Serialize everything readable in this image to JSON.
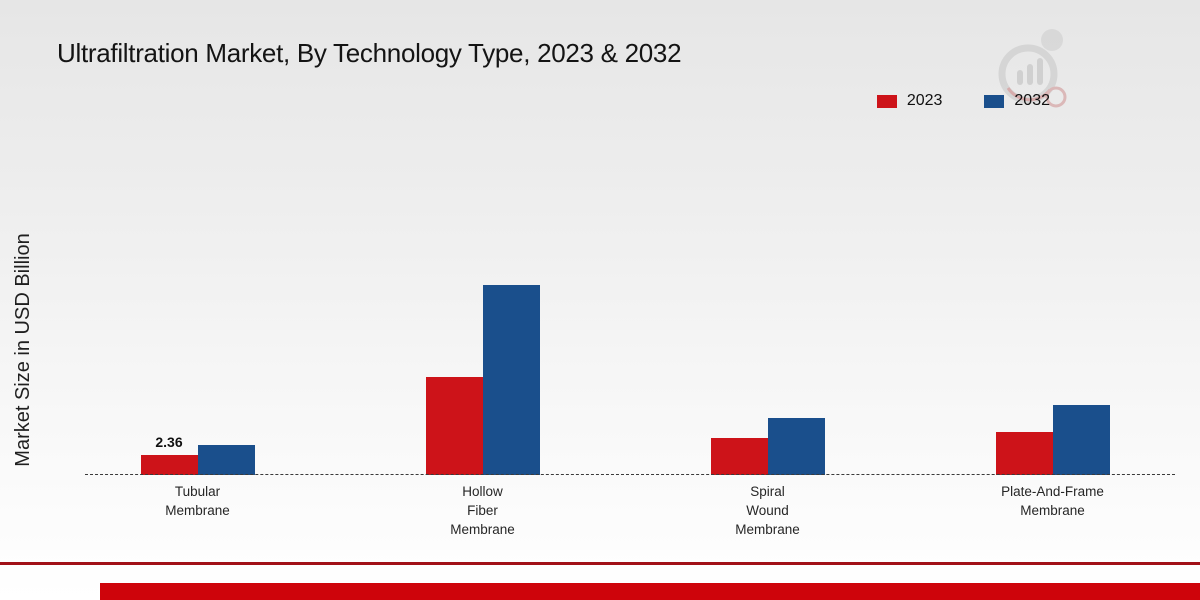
{
  "chart_data": {
    "type": "bar",
    "title": "Ultrafiltration Market, By Technology Type, 2023 & 2032",
    "ylabel": "Market Size in USD Billion",
    "categories": [
      "Tubular\nMembrane",
      "Hollow\nFiber\nMembrane",
      "Spiral\nWound\nMembrane",
      "Plate-And-Frame\nMembrane"
    ],
    "series": [
      {
        "name": "2023",
        "color": "#cd1319",
        "values": [
          2.36,
          11.5,
          4.3,
          5.0
        ]
      },
      {
        "name": "2032",
        "color": "#1a4f8c",
        "values": [
          3.5,
          22.4,
          6.7,
          8.2
        ]
      }
    ],
    "shown_value_labels": [
      {
        "series_index": 0,
        "category_index": 0,
        "label": "2.36"
      }
    ],
    "ylim": [
      0,
      24
    ],
    "legend_position": "top-right",
    "baseline_style": "dashed",
    "grid": false
  },
  "footer": {
    "thin_line_color": "#a11117",
    "bar_color": "#ce040b"
  }
}
